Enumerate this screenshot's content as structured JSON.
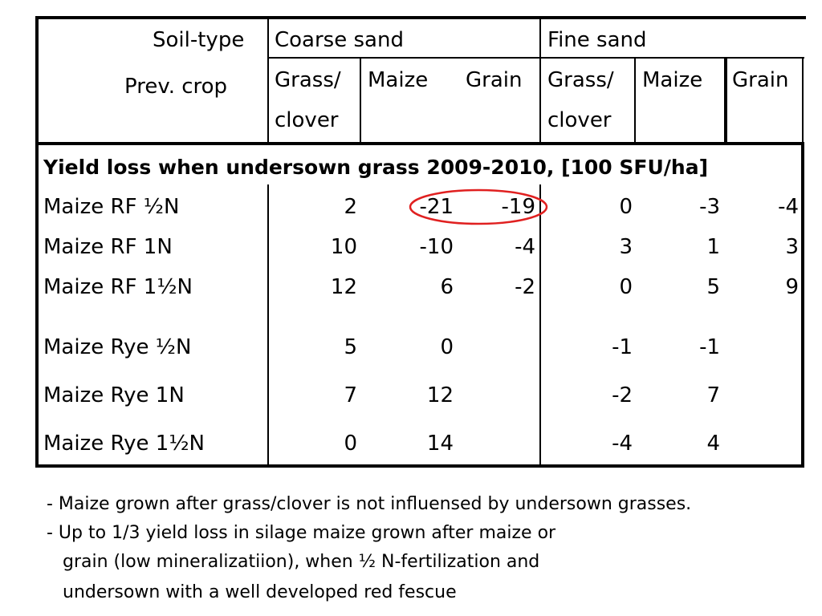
{
  "header": {
    "soil_type_label": "Soil-type",
    "prev_crop_label": "Prev. crop",
    "coarse_sand": "Coarse sand",
    "fine_sand": "Fine sand",
    "coarse": {
      "grass_l1": "Grass/",
      "grass_l2": "clover",
      "maize": "Maize",
      "grain": "Grain"
    },
    "fine": {
      "grass_l1": "Grass/",
      "grass_l2": "clover",
      "maize": "Maize",
      "grain": "Grain"
    }
  },
  "section_title": "Yield loss when undersown grass 2009-2010, [100 SFU/ha]",
  "rows": [
    {
      "label": "Maize RF ½N",
      "cs_gc": "2",
      "cs_m": "-21",
      "cs_g": "-19",
      "fs_gc": "0",
      "fs_m": "-3",
      "fs_g": "-4"
    },
    {
      "label": "Maize RF 1N",
      "cs_gc": "10",
      "cs_m": "-10",
      "cs_g": "-4",
      "fs_gc": "3",
      "fs_m": "1",
      "fs_g": "3"
    },
    {
      "label": "Maize RF 1½N",
      "cs_gc": "12",
      "cs_m": "6",
      "cs_g": "-2",
      "fs_gc": "0",
      "fs_m": "5",
      "fs_g": "9"
    },
    {
      "label": "Maize Rye ½N",
      "cs_gc": "5",
      "cs_m": "0",
      "cs_g": "",
      "fs_gc": "-1",
      "fs_m": "-1",
      "fs_g": ""
    },
    {
      "label": "Maize Rye 1N",
      "cs_gc": "7",
      "cs_m": "12",
      "cs_g": "",
      "fs_gc": "-2",
      "fs_m": "7",
      "fs_g": ""
    },
    {
      "label": "Maize Rye 1½N",
      "cs_gc": "0",
      "cs_m": "14",
      "cs_g": "",
      "fs_gc": "-4",
      "fs_m": "4",
      "fs_g": ""
    }
  ],
  "notes": {
    "note1": "- Maize grown after grass/clover is not influensed by undersown grasses.",
    "note2_l1": "- Up to 1/3 yield loss in silage maize grown after maize or",
    "note2_l2": "grain (low mineralizatiion), when ½ N-fertilization and",
    "note2_l3": "undersown with a well developed red fescue"
  },
  "highlight_color": "#e02020"
}
